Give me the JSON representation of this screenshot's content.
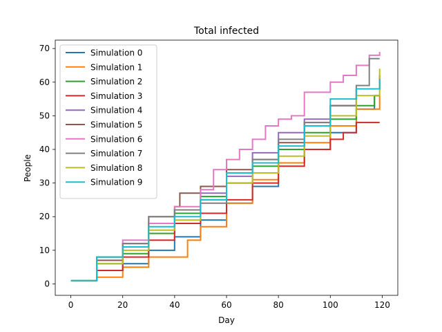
{
  "chart_data": {
    "type": "line",
    "title": "Total infected",
    "xlabel": "Day",
    "ylabel": "People",
    "xlim": [
      -6,
      126
    ],
    "ylim": [
      -3.4,
      72.5
    ],
    "xticks": [
      0,
      20,
      40,
      60,
      80,
      100,
      120
    ],
    "yticks": [
      0,
      10,
      20,
      30,
      40,
      50,
      60,
      70
    ],
    "grid": false,
    "legend_position": "top-left",
    "series": [
      {
        "name": "Simulation 0",
        "color": "#1f77b4",
        "x": [
          0,
          10,
          20,
          30,
          40,
          50,
          60,
          70,
          80,
          90,
          100,
          110,
          117,
          119
        ],
        "y": [
          1,
          4,
          6,
          10,
          14,
          19,
          24,
          29,
          36,
          40,
          45,
          52,
          56,
          56
        ]
      },
      {
        "name": "Simulation 1",
        "color": "#ff7f0e",
        "x": [
          0,
          10,
          20,
          30,
          38,
          45,
          50,
          55,
          60,
          70,
          80,
          90,
          100,
          110,
          115,
          119
        ],
        "y": [
          1,
          2,
          5,
          8,
          8,
          13,
          17,
          17,
          24,
          31,
          36,
          42,
          47,
          52,
          52,
          56
        ]
      },
      {
        "name": "Simulation 2",
        "color": "#2ca02c",
        "x": [
          0,
          10,
          20,
          30,
          40,
          50,
          60,
          70,
          80,
          90,
          100,
          110,
          117,
          119
        ],
        "y": [
          1,
          6,
          9,
          15,
          21,
          26,
          30,
          35,
          40,
          45,
          49,
          53,
          56,
          56
        ]
      },
      {
        "name": "Simulation 3",
        "color": "#d62728",
        "x": [
          0,
          10,
          20,
          30,
          40,
          50,
          60,
          70,
          80,
          90,
          100,
          105,
          110,
          119
        ],
        "y": [
          1,
          4,
          8,
          13,
          18,
          21,
          25,
          30,
          35,
          40,
          43,
          45,
          48,
          48
        ]
      },
      {
        "name": "Simulation 4",
        "color": "#9467bd",
        "x": [
          0,
          10,
          20,
          30,
          40,
          50,
          60,
          70,
          80,
          90,
          100,
          110,
          119
        ],
        "y": [
          1,
          8,
          12,
          18,
          22,
          27,
          32,
          39,
          45,
          49,
          53,
          58,
          62
        ]
      },
      {
        "name": "Simulation 5",
        "color": "#8c564b",
        "x": [
          0,
          10,
          20,
          30,
          40,
          42,
          50,
          60,
          70,
          80,
          90,
          100,
          110,
          119
        ],
        "y": [
          1,
          7,
          12,
          20,
          23,
          27,
          29,
          34,
          37,
          42,
          48,
          53,
          58,
          62
        ]
      },
      {
        "name": "Simulation 6",
        "color": "#e377c2",
        "x": [
          0,
          10,
          20,
          30,
          40,
          50,
          55,
          60,
          65,
          70,
          75,
          80,
          85,
          90,
          95,
          100,
          105,
          110,
          115,
          119
        ],
        "y": [
          1,
          8,
          13,
          18,
          23,
          28,
          34,
          37,
          40,
          43,
          47,
          49,
          50,
          57,
          57,
          60,
          62,
          65,
          68,
          69
        ]
      },
      {
        "name": "Simulation 7",
        "color": "#7f7f7f",
        "x": [
          0,
          10,
          20,
          30,
          40,
          50,
          60,
          70,
          80,
          90,
          100,
          110,
          115,
          119
        ],
        "y": [
          1,
          8,
          12,
          20,
          22,
          24,
          30,
          37,
          43,
          48,
          53,
          59,
          67,
          67
        ]
      },
      {
        "name": "Simulation 8",
        "color": "#bcbd22",
        "x": [
          0,
          10,
          20,
          30,
          40,
          50,
          60,
          70,
          80,
          90,
          100,
          110,
          119
        ],
        "y": [
          1,
          6,
          10,
          16,
          19,
          25,
          30,
          33,
          38,
          44,
          50,
          56,
          64
        ]
      },
      {
        "name": "Simulation 9",
        "color": "#17becf",
        "x": [
          0,
          10,
          20,
          30,
          40,
          50,
          60,
          70,
          80,
          90,
          100,
          110,
          119
        ],
        "y": [
          1,
          8,
          11,
          17,
          20,
          25,
          33,
          36,
          41,
          47,
          55,
          58,
          61
        ]
      }
    ]
  }
}
